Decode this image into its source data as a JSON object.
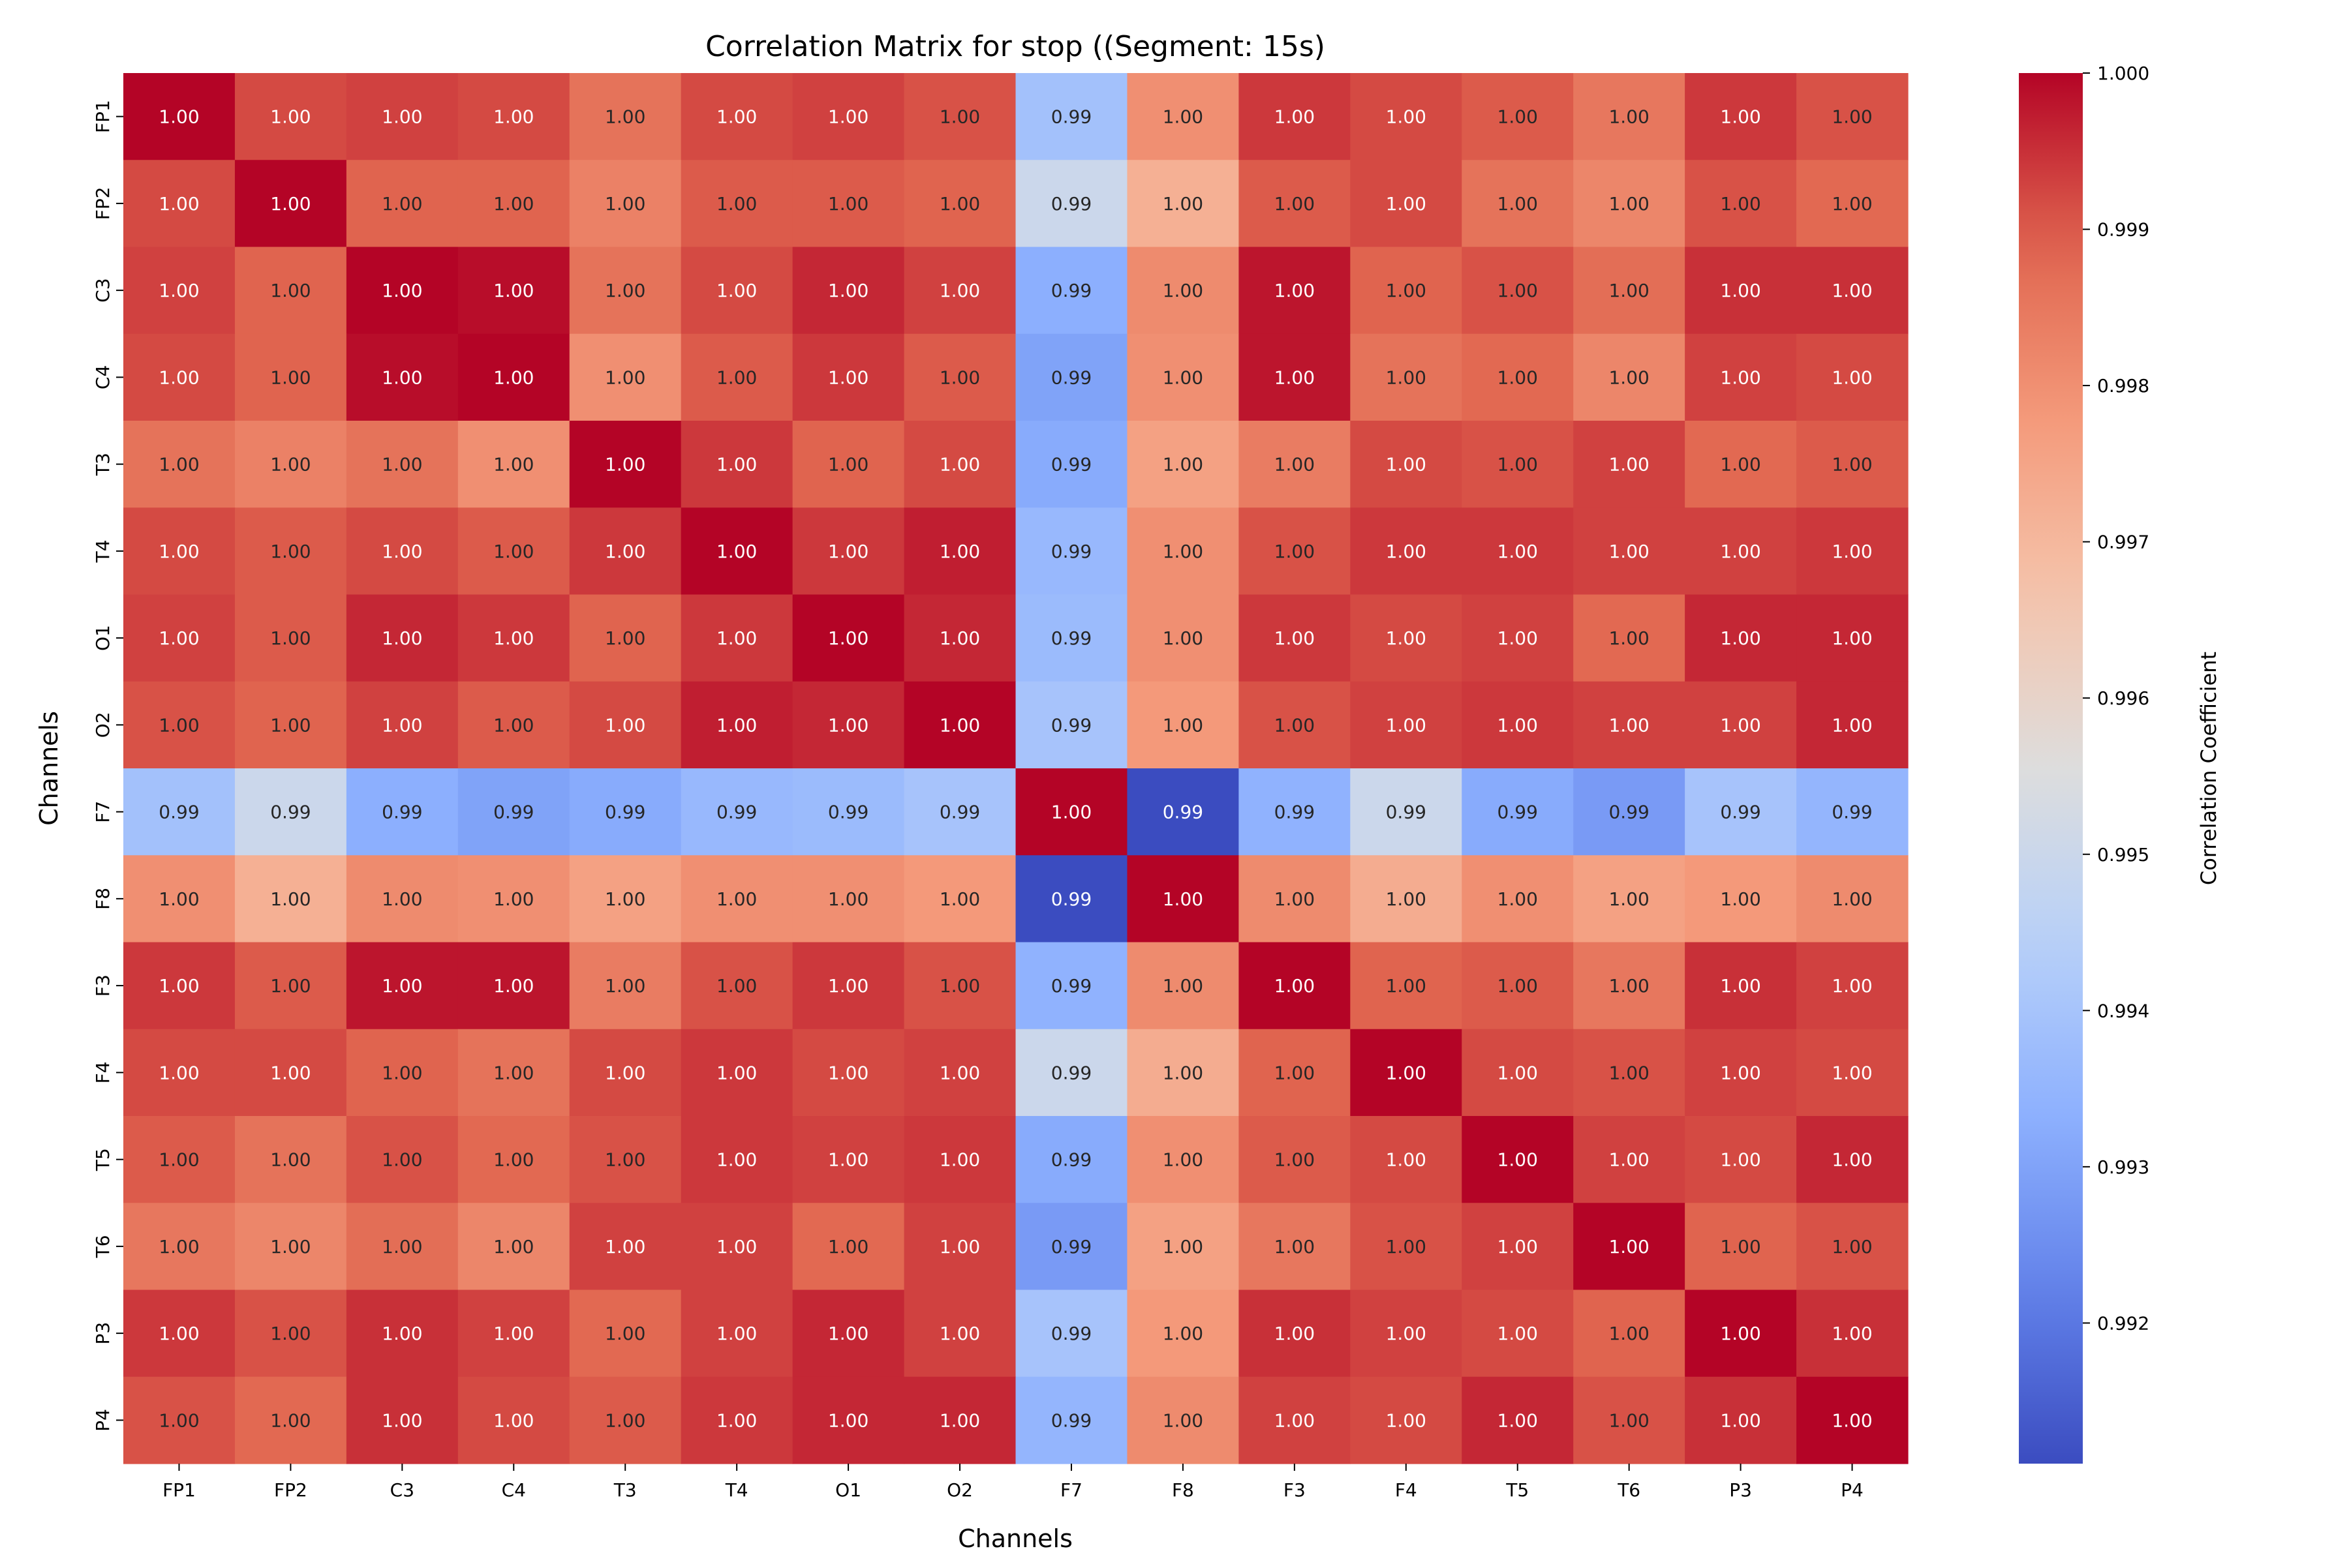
{
  "chart_data": {
    "type": "heatmap",
    "title": "Correlation Matrix for stop ((Segment: 15s)",
    "xlabel": "Channels",
    "ylabel": "Channels",
    "colorbar_label": "Correlation Coefficient",
    "colormap": "coolwarm",
    "colorbar_range": [
      0.9911,
      1.0
    ],
    "colorbar_ticks": [
      "0.992",
      "0.993",
      "0.994",
      "0.995",
      "0.996",
      "0.997",
      "0.998",
      "0.999",
      "1.000"
    ],
    "annotation_format": "2 decimals",
    "categories": [
      "FP1",
      "FP2",
      "C3",
      "C4",
      "T3",
      "T4",
      "O1",
      "O2",
      "F7",
      "F8",
      "F3",
      "F4",
      "T5",
      "T6",
      "P3",
      "P4"
    ],
    "values": [
      [
        1,
        0.9992,
        0.9993,
        0.9992,
        0.9986,
        0.9992,
        0.9993,
        0.9991,
        0.9939,
        0.998,
        0.9994,
        0.9992,
        0.999,
        0.9985,
        0.9994,
        0.9991
      ],
      [
        0.9992,
        1,
        0.9989,
        0.9989,
        0.9983,
        0.999,
        0.999,
        0.9989,
        0.995,
        0.9972,
        0.999,
        0.9992,
        0.9986,
        0.9982,
        0.9991,
        0.9988
      ],
      [
        0.9993,
        0.9989,
        1,
        0.9999,
        0.9986,
        0.9992,
        0.9996,
        0.9993,
        0.9933,
        0.9981,
        0.9998,
        0.9989,
        0.9991,
        0.9987,
        0.9995,
        0.9995
      ],
      [
        0.9992,
        0.9989,
        0.9999,
        1,
        0.998,
        0.999,
        0.9994,
        0.999,
        0.993,
        0.998,
        0.9998,
        0.9986,
        0.9988,
        0.9982,
        0.9993,
        0.9992
      ],
      [
        0.9986,
        0.9983,
        0.9986,
        0.998,
        1,
        0.9994,
        0.9989,
        0.9992,
        0.9932,
        0.9976,
        0.9984,
        0.9992,
        0.9991,
        0.9993,
        0.9988,
        0.999
      ],
      [
        0.9992,
        0.999,
        0.9992,
        0.999,
        0.9994,
        1,
        0.9994,
        0.9997,
        0.9936,
        0.998,
        0.9991,
        0.9994,
        0.9994,
        0.9993,
        0.9993,
        0.9994
      ],
      [
        0.9993,
        0.999,
        0.9996,
        0.9994,
        0.9989,
        0.9994,
        1,
        0.9996,
        0.9937,
        0.998,
        0.9994,
        0.9992,
        0.9993,
        0.9988,
        0.9996,
        0.9996
      ],
      [
        0.9991,
        0.9989,
        0.9993,
        0.999,
        0.9992,
        0.9997,
        0.9996,
        1,
        0.994,
        0.9978,
        0.9991,
        0.9993,
        0.9994,
        0.9993,
        0.9993,
        0.9996
      ],
      [
        0.9939,
        0.995,
        0.9933,
        0.993,
        0.9932,
        0.9936,
        0.9937,
        0.994,
        1,
        0.9911,
        0.9934,
        0.995,
        0.9932,
        0.9928,
        0.994,
        0.9935
      ],
      [
        0.998,
        0.9972,
        0.9981,
        0.998,
        0.9976,
        0.998,
        0.998,
        0.9978,
        0.9911,
        1,
        0.9981,
        0.9973,
        0.998,
        0.9976,
        0.9978,
        0.9981
      ],
      [
        0.9994,
        0.999,
        0.9998,
        0.9998,
        0.9984,
        0.9991,
        0.9994,
        0.9991,
        0.9934,
        0.9981,
        1,
        0.9989,
        0.999,
        0.9985,
        0.9995,
        0.9993
      ],
      [
        0.9992,
        0.9992,
        0.9989,
        0.9986,
        0.9992,
        0.9994,
        0.9992,
        0.9993,
        0.995,
        0.9973,
        0.9989,
        1,
        0.9992,
        0.9991,
        0.9993,
        0.9992
      ],
      [
        0.999,
        0.9986,
        0.9991,
        0.9988,
        0.9991,
        0.9994,
        0.9993,
        0.9994,
        0.9932,
        0.998,
        0.999,
        0.9992,
        1,
        0.9993,
        0.9992,
        0.9996
      ],
      [
        0.9985,
        0.9982,
        0.9987,
        0.9982,
        0.9993,
        0.9993,
        0.9988,
        0.9993,
        0.9928,
        0.9976,
        0.9985,
        0.9991,
        0.9993,
        1,
        0.9989,
        0.9991
      ],
      [
        0.9994,
        0.9991,
        0.9995,
        0.9993,
        0.9988,
        0.9993,
        0.9996,
        0.9993,
        0.994,
        0.9978,
        0.9995,
        0.9993,
        0.9992,
        0.9989,
        1,
        0.9995
      ],
      [
        0.9991,
        0.9988,
        0.9995,
        0.9992,
        0.999,
        0.9994,
        0.9996,
        0.9996,
        0.9935,
        0.9981,
        0.9993,
        0.9992,
        0.9996,
        0.9991,
        0.9995,
        1
      ]
    ]
  }
}
